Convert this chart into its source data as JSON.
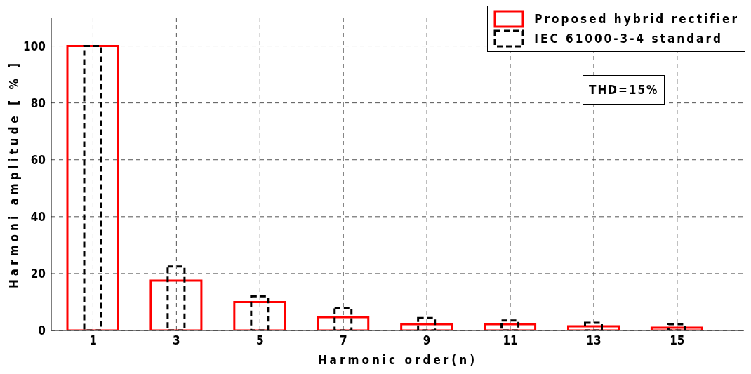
{
  "chart_data": {
    "type": "bar",
    "xlabel": "Harmonic order(n)",
    "ylabel": "Harmoni amplitude [ % ]",
    "x": [
      1,
      3,
      5,
      7,
      9,
      11,
      13,
      15
    ],
    "series": [
      {
        "name": "Proposed hybrid rectifier",
        "color": "#ff0000",
        "line_style": "solid",
        "values": [
          100,
          17.5,
          10,
          4.7,
          2.2,
          2.2,
          1.5,
          1
        ]
      },
      {
        "name": "IEC 61000-3-4 standard",
        "color": "#000000",
        "line_style": "dashed",
        "values": [
          100,
          22.5,
          12,
          8,
          4.4,
          3.5,
          2.7,
          2.2
        ]
      }
    ],
    "xlim": [
      0,
      16.6
    ],
    "xticks": [
      1,
      3,
      5,
      7,
      9,
      11,
      13,
      15
    ],
    "ylim": [
      0,
      110
    ],
    "yticks": [
      0,
      20,
      40,
      60,
      80,
      100
    ],
    "grid": true,
    "legend": "top right",
    "annotations": [
      "THD=15%"
    ]
  }
}
